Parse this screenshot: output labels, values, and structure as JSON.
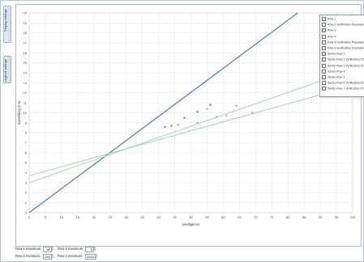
{
  "tabs": [
    "Display settings",
    "Legend settings"
  ],
  "colors": {
    "accent_line": "#5b82b4",
    "fit_line": "#a7d6b4",
    "point_red": "#e07b7b",
    "point_blue": "#3c6ea8",
    "grid": "#e6e6e6"
  },
  "legend": {
    "items": [
      "Row 1",
      "Row 2 Verification Population",
      "Row 3",
      "Row 4",
      "Row 5 Verification Population",
      "Row 6 Verification Population",
      "Series Row 1",
      "Series Row 2 Verification Population",
      "Series Row 3 Verification Population",
      "Series Row 4",
      "Series Row 5",
      "Series Row 6 Verification Population",
      "Series Row 7 Verification Population"
    ]
  },
  "controls": [
    {
      "label": "Row 1 maximum:",
      "value": "80"
    },
    {
      "label": "Row 2 maximum:",
      "value": "0"
    },
    {
      "label": "Row 1 minimum:",
      "value": "250"
    },
    {
      "label": "Row 2 minimum:",
      "value": "2010"
    }
  ],
  "chart_data": {
    "type": "scatter",
    "xlabel": "Intelligence",
    "ylabel": "Something in %",
    "xlim": [
      0,
      100
    ],
    "ylim": [
      0,
      20
    ],
    "x_ticks": [
      0,
      5,
      10,
      15,
      20,
      25,
      30,
      35,
      40,
      45,
      50,
      55,
      60,
      65,
      70,
      75,
      80,
      85,
      90,
      95,
      100
    ],
    "y_ticks": [
      0,
      1,
      2,
      3,
      4,
      5,
      6,
      7,
      8,
      9,
      10,
      11,
      12,
      13,
      14,
      15,
      16,
      17,
      18,
      19,
      20
    ],
    "grid": true,
    "legend_position": "top-right",
    "series": [
      {
        "name": "Row 1",
        "kind": "points",
        "color": "#3c6ea8",
        "points": [
          [
            42,
            8.6
          ],
          [
            44,
            8.7
          ],
          [
            48,
            9.5
          ],
          [
            52,
            10.1
          ],
          [
            56,
            10.8
          ]
        ]
      },
      {
        "name": "Row 2 Verification Population",
        "kind": "points",
        "color": "#e07b7b",
        "points": [
          [
            46,
            8.8
          ],
          [
            52,
            9.0
          ],
          [
            55,
            10.4
          ],
          [
            58,
            9.6
          ],
          [
            61,
            9.7
          ],
          [
            64,
            10.7
          ],
          [
            69,
            10.0
          ]
        ]
      },
      {
        "name": "Series Row 1",
        "kind": "line",
        "color": "#5b82b4",
        "points": [
          [
            0,
            0
          ],
          [
            83,
            20
          ]
        ]
      },
      {
        "name": "Series Row 2 Verification Population",
        "kind": "line",
        "color": "#a7d6b4",
        "points": [
          [
            0,
            3
          ],
          [
            100,
            14.3
          ]
        ]
      },
      {
        "name": "Series Row 3 Verification Population",
        "kind": "line",
        "color": "#a7d6b4",
        "points": [
          [
            0,
            3.7
          ],
          [
            100,
            12.7
          ]
        ]
      }
    ]
  }
}
